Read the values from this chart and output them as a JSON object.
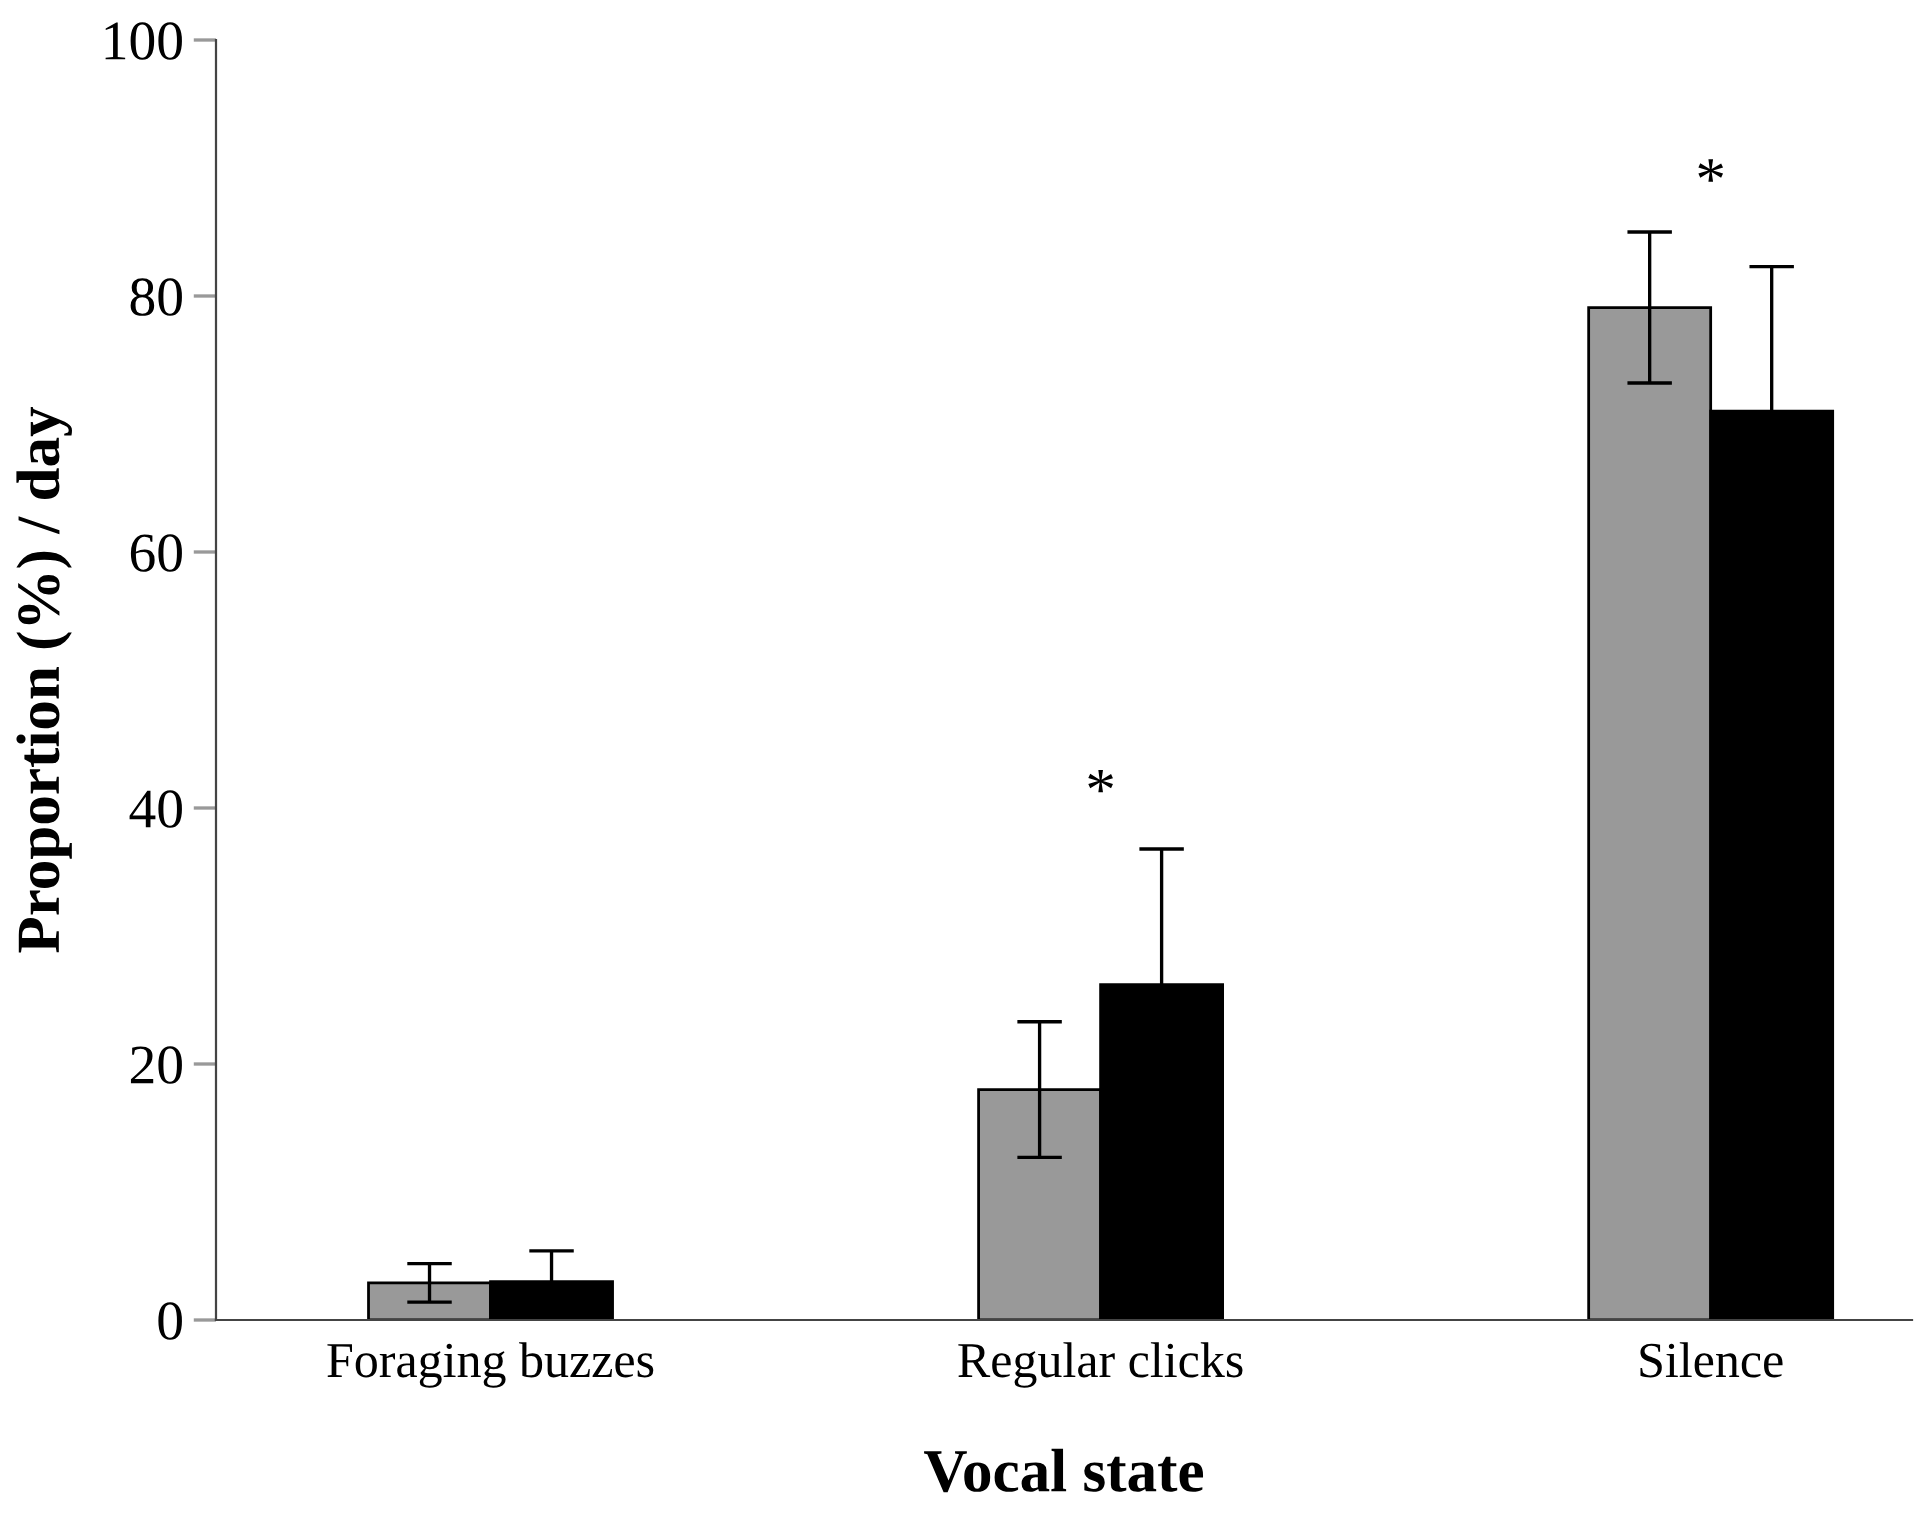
{
  "chart_data": {
    "type": "bar",
    "xlabel": "Vocal state",
    "ylabel": "Proportion (%) / day",
    "categories": [
      "Foraging buzzes",
      "Regular clicks",
      "Silence"
    ],
    "series": [
      {
        "color": "#999999",
        "values": [
          2.9,
          18.0,
          79.1
        ],
        "errors": [
          1.5,
          5.3,
          5.9
        ]
      },
      {
        "color": "#000000",
        "values": [
          3.0,
          26.2,
          71.0
        ],
        "errors": [
          2.4,
          10.6,
          11.3
        ]
      }
    ],
    "ylim": [
      0,
      100
    ],
    "yticks": [
      0,
      20,
      40,
      60,
      80,
      100
    ],
    "grid": false,
    "legend": false,
    "annotations": [
      "*",
      "*"
    ]
  }
}
